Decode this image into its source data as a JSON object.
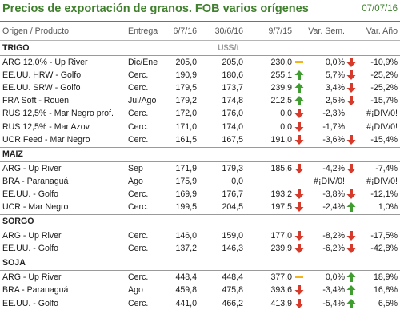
{
  "title": "Precios de exportación de granos. FOB varios orígenes",
  "date": "07/07/16",
  "headers": {
    "origin": "Origen / Producto",
    "delivery": "Entrega",
    "d1": "6/7/16",
    "d2": "30/6/16",
    "d3": "9/7/15",
    "var_week": "Var. Sem.",
    "var_year": "Var. Año"
  },
  "unit": "U$S/t",
  "colors": {
    "up": "#3f9e2f",
    "down": "#d63a2a",
    "flat": "#f2b31b",
    "accent": "#3f7f2d"
  },
  "sections": [
    {
      "name": "TRIGO",
      "rows": [
        {
          "product": "ARG 12,0% - Up River",
          "delivery": "Dic/Ene",
          "v1": "205,0",
          "v2": "205,0",
          "v3": "230,0",
          "icon3": "flat",
          "var_week": "0,0%",
          "icon_w": "down",
          "var_year": "-10,9%"
        },
        {
          "product": "EE.UU. HRW - Golfo",
          "delivery": "Cerc.",
          "v1": "190,9",
          "v2": "180,6",
          "v3": "255,1",
          "icon3": "up",
          "var_week": "5,7%",
          "icon_w": "down",
          "var_year": "-25,2%"
        },
        {
          "product": "EE.UU. SRW - Golfo",
          "delivery": "Cerc.",
          "v1": "179,5",
          "v2": "173,7",
          "v3": "239,9",
          "icon3": "up",
          "var_week": "3,4%",
          "icon_w": "down",
          "var_year": "-25,2%"
        },
        {
          "product": "FRA Soft - Rouen",
          "delivery": "Jul/Ago",
          "v1": "179,2",
          "v2": "174,8",
          "v3": "212,5",
          "icon3": "up",
          "var_week": "2,5%",
          "icon_w": "down",
          "var_year": "-15,7%"
        },
        {
          "product": "RUS 12,5% - Mar Negro prof.",
          "delivery": "Cerc.",
          "v1": "172,0",
          "v2": "176,0",
          "v3": "0,0",
          "icon3": "down",
          "var_week": "-2,3%",
          "icon_w": "",
          "var_year": "#¡DIV/0!"
        },
        {
          "product": "RUS 12,5% - Mar Azov",
          "delivery": "Cerc.",
          "v1": "171,0",
          "v2": "174,0",
          "v3": "0,0",
          "icon3": "down",
          "var_week": "-1,7%",
          "icon_w": "",
          "var_year": "#¡DIV/0!"
        },
        {
          "product": "UCR Feed - Mar Negro",
          "delivery": "Cerc.",
          "v1": "161,5",
          "v2": "167,5",
          "v3": "191,0",
          "icon3": "down",
          "var_week": "-3,6%",
          "icon_w": "down",
          "var_year": "-15,4%"
        }
      ]
    },
    {
      "name": "MAIZ",
      "rows": [
        {
          "product": "ARG - Up River",
          "delivery": "Sep",
          "v1": "171,9",
          "v2": "179,3",
          "v3": "185,6",
          "icon3": "down",
          "var_week": "-4,2%",
          "icon_w": "down",
          "var_year": "-7,4%"
        },
        {
          "product": "BRA - Paranaguá",
          "delivery": "Ago",
          "v1": "175,9",
          "v2": "0,0",
          "v3": "",
          "icon3": "",
          "var_week": "#¡DIV/0!",
          "icon_w": "",
          "var_year": "#¡DIV/0!"
        },
        {
          "product": "EE.UU. - Golfo",
          "delivery": "Cerc.",
          "v1": "169,9",
          "v2": "176,7",
          "v3": "193,2",
          "icon3": "down",
          "var_week": "-3,8%",
          "icon_w": "down",
          "var_year": "-12,1%"
        },
        {
          "product": "UCR - Mar Negro",
          "delivery": "Cerc.",
          "v1": "199,5",
          "v2": "204,5",
          "v3": "197,5",
          "icon3": "down",
          "var_week": "-2,4%",
          "icon_w": "up",
          "var_year": "1,0%"
        }
      ]
    },
    {
      "name": "SORGO",
      "rows": [
        {
          "product": "ARG - Up River",
          "delivery": "Cerc.",
          "v1": "146,0",
          "v2": "159,0",
          "v3": "177,0",
          "icon3": "down",
          "var_week": "-8,2%",
          "icon_w": "down",
          "var_year": "-17,5%"
        },
        {
          "product": "EE.UU. - Golfo",
          "delivery": "Cerc.",
          "v1": "137,2",
          "v2": "146,3",
          "v3": "239,9",
          "icon3": "down",
          "var_week": "-6,2%",
          "icon_w": "down",
          "var_year": "-42,8%"
        }
      ]
    },
    {
      "name": "SOJA",
      "rows": [
        {
          "product": "ARG - Up River",
          "delivery": "Cerc.",
          "v1": "448,4",
          "v2": "448,4",
          "v3": "377,0",
          "icon3": "flat",
          "var_week": "0,0%",
          "icon_w": "up",
          "var_year": "18,9%"
        },
        {
          "product": "BRA - Paranaguá",
          "delivery": "Ago",
          "v1": "459,8",
          "v2": "475,8",
          "v3": "393,6",
          "icon3": "down",
          "var_week": "-3,4%",
          "icon_w": "up",
          "var_year": "16,8%"
        },
        {
          "product": "EE.UU. - Golfo",
          "delivery": "Cerc.",
          "v1": "441,0",
          "v2": "466,2",
          "v3": "413,9",
          "icon3": "down",
          "var_week": "-5,4%",
          "icon_w": "up",
          "var_year": "6,5%"
        }
      ]
    }
  ]
}
